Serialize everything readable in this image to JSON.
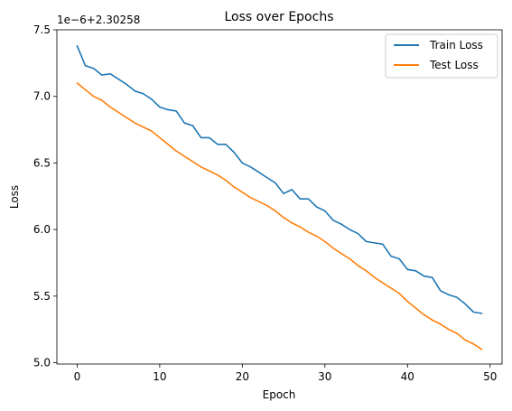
{
  "chart_data": {
    "type": "line",
    "title": "Loss over Epochs",
    "xlabel": "Epoch",
    "ylabel": "Loss",
    "offset_label": "1e−6+2.30258",
    "xlim": [
      -2.45,
      51.45
    ],
    "ylim": [
      4.99,
      7.5
    ],
    "xticks": [
      0,
      10,
      20,
      30,
      40,
      50
    ],
    "yticks": [
      5.0,
      5.5,
      6.0,
      6.5,
      7.0,
      7.5
    ],
    "ytick_labels": [
      "5.0",
      "5.5",
      "6.0",
      "6.5",
      "7.0",
      "7.5"
    ],
    "legend_position": "upper right",
    "grid": false,
    "x": [
      0,
      1,
      2,
      3,
      4,
      5,
      6,
      7,
      8,
      9,
      10,
      11,
      12,
      13,
      14,
      15,
      16,
      17,
      18,
      19,
      20,
      21,
      22,
      23,
      24,
      25,
      26,
      27,
      28,
      29,
      30,
      31,
      32,
      33,
      34,
      35,
      36,
      37,
      38,
      39,
      40,
      41,
      42,
      43,
      44,
      45,
      46,
      47,
      48,
      49
    ],
    "series": [
      {
        "name": "Train Loss",
        "color": "#1f77b4",
        "values": [
          7.38,
          7.23,
          7.21,
          7.16,
          7.17,
          7.13,
          7.09,
          7.04,
          7.02,
          6.98,
          6.92,
          6.9,
          6.89,
          6.8,
          6.78,
          6.69,
          6.69,
          6.64,
          6.64,
          6.58,
          6.5,
          6.47,
          6.43,
          6.39,
          6.35,
          6.27,
          6.3,
          6.23,
          6.23,
          6.17,
          6.14,
          6.07,
          6.04,
          6.0,
          5.97,
          5.91,
          5.9,
          5.89,
          5.8,
          5.78,
          5.7,
          5.69,
          5.65,
          5.64,
          5.54,
          5.51,
          5.49,
          5.44,
          5.38,
          5.37
        ]
      },
      {
        "name": "Test Loss",
        "color": "#ff7f0e",
        "values": [
          7.1,
          7.05,
          7.0,
          6.97,
          6.92,
          6.88,
          6.84,
          6.8,
          6.77,
          6.74,
          6.69,
          6.64,
          6.59,
          6.55,
          6.51,
          6.47,
          6.44,
          6.41,
          6.37,
          6.32,
          6.28,
          6.24,
          6.21,
          6.18,
          6.14,
          6.09,
          6.05,
          6.02,
          5.98,
          5.95,
          5.91,
          5.86,
          5.82,
          5.78,
          5.73,
          5.69,
          5.64,
          5.6,
          5.56,
          5.52,
          5.46,
          5.41,
          5.36,
          5.32,
          5.29,
          5.25,
          5.22,
          5.17,
          5.14,
          5.1
        ]
      }
    ]
  }
}
